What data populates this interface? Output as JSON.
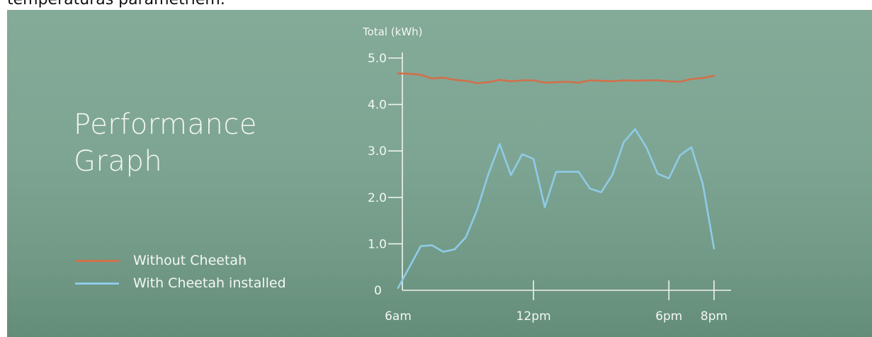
{
  "page": {
    "top_text": "temperaturas parametriem."
  },
  "title_lines": [
    "Performance",
    "Graph"
  ],
  "legend": [
    {
      "label": "Without Cheetah",
      "color": "#d2704a"
    },
    {
      "label": "With Cheetah installed",
      "color": "#8ecbe6"
    }
  ],
  "colors": {
    "axis": "#eef4f0",
    "text": "#f3f7f4"
  },
  "chart_data": {
    "type": "line",
    "title": "",
    "ylabel": "Total (kWh)",
    "xlabel": "",
    "ylim": [
      0,
      5.0
    ],
    "xlim": [
      0,
      14
    ],
    "x_ticks": [
      {
        "value": 0,
        "label": "6am"
      },
      {
        "value": 6,
        "label": "12pm"
      },
      {
        "value": 12,
        "label": "6pm"
      },
      {
        "value": 14,
        "label": "8pm"
      }
    ],
    "y_ticks": [
      {
        "value": 0,
        "label": "0"
      },
      {
        "value": 1,
        "label": "1.0"
      },
      {
        "value": 2,
        "label": "2.0"
      },
      {
        "value": 3,
        "label": "3.0"
      },
      {
        "value": 4,
        "label": "4.0"
      },
      {
        "value": 5,
        "label": "5.0"
      }
    ],
    "grid": false,
    "series": [
      {
        "name": "Without Cheetah",
        "color": "#d2704a",
        "x": [
          0,
          0.5,
          1,
          1.5,
          2,
          2.5,
          3,
          3.5,
          4,
          4.5,
          5,
          5.5,
          6,
          6.5,
          7,
          7.5,
          8,
          8.5,
          9,
          9.5,
          10,
          10.5,
          11,
          11.5,
          12,
          12.5,
          13,
          13.5,
          14
        ],
        "y": [
          4.67,
          4.66,
          4.64,
          4.56,
          4.58,
          4.53,
          4.51,
          4.46,
          4.48,
          4.53,
          4.5,
          4.52,
          4.52,
          4.47,
          4.48,
          4.49,
          4.47,
          4.52,
          4.51,
          4.5,
          4.52,
          4.51,
          4.52,
          4.52,
          4.5,
          4.49,
          4.55,
          4.57,
          4.62
        ]
      },
      {
        "name": "With Cheetah installed",
        "color": "#8ecbe6",
        "x": [
          0,
          0.5,
          1,
          1.5,
          2,
          2.5,
          3,
          3.5,
          4,
          4.5,
          5,
          5.5,
          6,
          6.5,
          7,
          7.5,
          8,
          8.5,
          9,
          9.5,
          10,
          10.5,
          11,
          11.5,
          12,
          12.5,
          13,
          13.5,
          14
        ],
        "y": [
          0.05,
          0.5,
          0.95,
          0.97,
          0.83,
          0.88,
          1.14,
          1.73,
          2.5,
          3.15,
          2.48,
          2.93,
          2.83,
          1.79,
          2.55,
          2.55,
          2.55,
          2.19,
          2.11,
          2.49,
          3.19,
          3.47,
          3.08,
          2.51,
          2.41,
          2.91,
          3.08,
          2.29,
          0.9
        ]
      }
    ]
  }
}
